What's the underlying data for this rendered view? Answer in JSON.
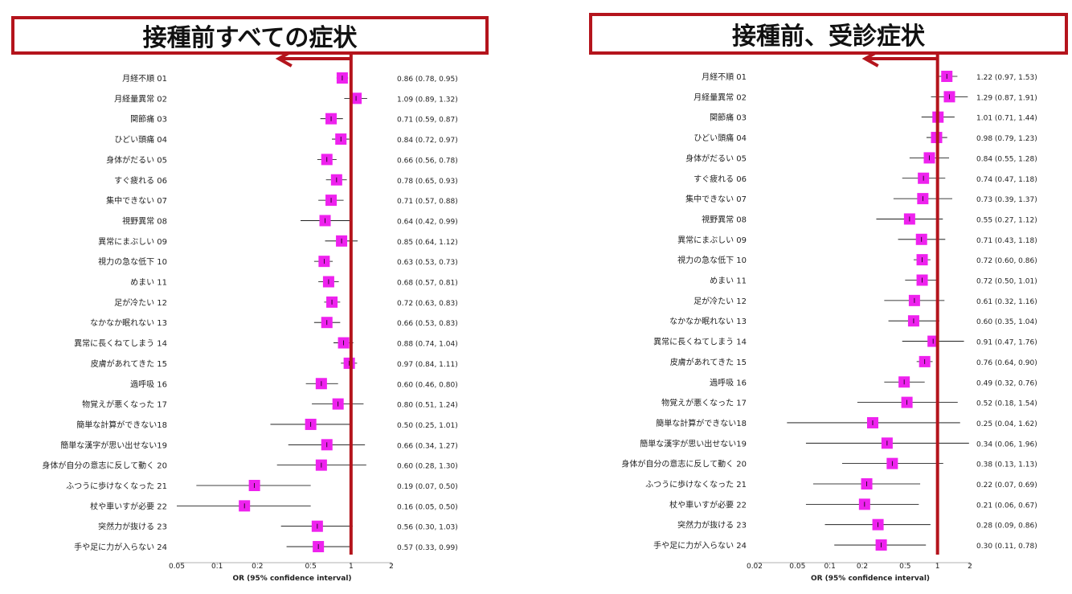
{
  "colors": {
    "accent": "#b4141c",
    "marker": "#ee22ee",
    "ci_line": "#000000"
  },
  "xlabel": "OR (95% confidence interval)",
  "panels": [
    {
      "title": "接種前すべての症状",
      "chart_data": {
        "type": "forest",
        "title": "接種前すべての症状",
        "xlabel": "OR (95% confidence interval)",
        "xscale": "log",
        "xticks": [
          "0.05",
          "0.1",
          "0.2",
          "0.5",
          "1",
          "2"
        ],
        "xlim": [
          0.05,
          2
        ],
        "reference_line": 1,
        "arrow": "left",
        "rows": [
          {
            "label": "月経不順 01",
            "or": 0.86,
            "lo": 0.78,
            "hi": 0.95,
            "text": "0.86 (0.78, 0.95)"
          },
          {
            "label": "月経量異常 02",
            "or": 1.09,
            "lo": 0.89,
            "hi": 1.32,
            "text": "1.09 (0.89, 1.32)"
          },
          {
            "label": "関節痛 03",
            "or": 0.71,
            "lo": 0.59,
            "hi": 0.87,
            "text": "0.71 (0.59, 0.87)"
          },
          {
            "label": "ひどい頭痛 04",
            "or": 0.84,
            "lo": 0.72,
            "hi": 0.97,
            "text": "0.84 (0.72, 0.97)"
          },
          {
            "label": "身体がだるい 05",
            "or": 0.66,
            "lo": 0.56,
            "hi": 0.78,
            "text": "0.66 (0.56, 0.78)"
          },
          {
            "label": "すぐ疲れる 06",
            "or": 0.78,
            "lo": 0.65,
            "hi": 0.93,
            "text": "0.78 (0.65, 0.93)"
          },
          {
            "label": "集中できない 07",
            "or": 0.71,
            "lo": 0.57,
            "hi": 0.88,
            "text": "0.71 (0.57, 0.88)"
          },
          {
            "label": "視野異常 08",
            "or": 0.64,
            "lo": 0.42,
            "hi": 0.99,
            "text": "0.64 (0.42, 0.99)"
          },
          {
            "label": "異常にまぶしい 09",
            "or": 0.85,
            "lo": 0.64,
            "hi": 1.12,
            "text": "0.85 (0.64, 1.12)"
          },
          {
            "label": "視力の急な低下 10",
            "or": 0.63,
            "lo": 0.53,
            "hi": 0.73,
            "text": "0.63 (0.53, 0.73)"
          },
          {
            "label": "めまい 11",
            "or": 0.68,
            "lo": 0.57,
            "hi": 0.81,
            "text": "0.68 (0.57, 0.81)"
          },
          {
            "label": "足が冷たい 12",
            "or": 0.72,
            "lo": 0.63,
            "hi": 0.83,
            "text": "0.72 (0.63, 0.83)"
          },
          {
            "label": "なかなか眠れない 13",
            "or": 0.66,
            "lo": 0.53,
            "hi": 0.83,
            "text": "0.66 (0.53, 0.83)"
          },
          {
            "label": "異常に長くねてしまう 14",
            "or": 0.88,
            "lo": 0.74,
            "hi": 1.04,
            "text": "0.88 (0.74, 1.04)"
          },
          {
            "label": "皮膚があれてきた 15",
            "or": 0.97,
            "lo": 0.84,
            "hi": 1.11,
            "text": "0.97 (0.84, 1.11)"
          },
          {
            "label": "過呼吸 16",
            "or": 0.6,
            "lo": 0.46,
            "hi": 0.8,
            "text": "0.60 (0.46, 0.80)"
          },
          {
            "label": "物覚えが悪くなった 17",
            "or": 0.8,
            "lo": 0.51,
            "hi": 1.24,
            "text": "0.80 (0.51, 1.24)"
          },
          {
            "label": "簡単な計算ができない18",
            "or": 0.5,
            "lo": 0.25,
            "hi": 1.01,
            "text": "0.50 (0.25, 1.01)"
          },
          {
            "label": "簡単な漢字が思い出せない19",
            "or": 0.66,
            "lo": 0.34,
            "hi": 1.27,
            "text": "0.66 (0.34, 1.27)"
          },
          {
            "label": "身体が自分の意志に反して動く 20",
            "or": 0.6,
            "lo": 0.28,
            "hi": 1.3,
            "text": "0.60 (0.28, 1.30)"
          },
          {
            "label": "ふつうに歩けなくなった 21",
            "or": 0.19,
            "lo": 0.07,
            "hi": 0.5,
            "text": "0.19 (0.07, 0.50)"
          },
          {
            "label": "杖や車いすが必要 22",
            "or": 0.16,
            "lo": 0.05,
            "hi": 0.5,
            "text": "0.16 (0.05, 0.50)"
          },
          {
            "label": "突然力が抜ける 23",
            "or": 0.56,
            "lo": 0.3,
            "hi": 1.03,
            "text": "0.56 (0.30, 1.03)"
          },
          {
            "label": "手や足に力が入らない 24",
            "or": 0.57,
            "lo": 0.33,
            "hi": 0.99,
            "text": "0.57 (0.33, 0.99)"
          }
        ]
      }
    },
    {
      "title": "接種前、受診症状",
      "chart_data": {
        "type": "forest",
        "title": "接種前、受診症状",
        "xlabel": "OR (95% confidence interval)",
        "xscale": "log",
        "xticks": [
          "0.02",
          "0.05",
          "0.1",
          "0.2",
          "0.5",
          "1",
          "2"
        ],
        "xlim": [
          0.02,
          2
        ],
        "reference_line": 1,
        "arrow": "left",
        "rows": [
          {
            "label": "月経不順 01",
            "or": 1.22,
            "lo": 0.97,
            "hi": 1.53,
            "text": "1.22 (0.97, 1.53)"
          },
          {
            "label": "月経量異常 02",
            "or": 1.29,
            "lo": 0.87,
            "hi": 1.91,
            "text": "1.29 (0.87, 1.91)"
          },
          {
            "label": "関節痛 03",
            "or": 1.01,
            "lo": 0.71,
            "hi": 1.44,
            "text": "1.01 (0.71, 1.44)"
          },
          {
            "label": "ひどい頭痛 04",
            "or": 0.98,
            "lo": 0.79,
            "hi": 1.23,
            "text": "0.98 (0.79, 1.23)"
          },
          {
            "label": "身体がだるい 05",
            "or": 0.84,
            "lo": 0.55,
            "hi": 1.28,
            "text": "0.84 (0.55, 1.28)"
          },
          {
            "label": "すぐ疲れる 06",
            "or": 0.74,
            "lo": 0.47,
            "hi": 1.18,
            "text": "0.74 (0.47, 1.18)"
          },
          {
            "label": "集中できない 07",
            "or": 0.73,
            "lo": 0.39,
            "hi": 1.37,
            "text": "0.73 (0.39, 1.37)"
          },
          {
            "label": "視野異常 08",
            "or": 0.55,
            "lo": 0.27,
            "hi": 1.12,
            "text": "0.55 (0.27, 1.12)"
          },
          {
            "label": "異常にまぶしい 09",
            "or": 0.71,
            "lo": 0.43,
            "hi": 1.18,
            "text": "0.71 (0.43, 1.18)"
          },
          {
            "label": "視力の急な低下 10",
            "or": 0.72,
            "lo": 0.6,
            "hi": 0.86,
            "text": "0.72 (0.60, 0.86)"
          },
          {
            "label": "めまい 11",
            "or": 0.72,
            "lo": 0.5,
            "hi": 1.01,
            "text": "0.72 (0.50, 1.01)"
          },
          {
            "label": "足が冷たい 12",
            "or": 0.61,
            "lo": 0.32,
            "hi": 1.16,
            "text": "0.61 (0.32, 1.16)"
          },
          {
            "label": "なかなか眠れない 13",
            "or": 0.6,
            "lo": 0.35,
            "hi": 1.04,
            "text": "0.60 (0.35, 1.04)"
          },
          {
            "label": "異常に長くねてしまう 14",
            "or": 0.91,
            "lo": 0.47,
            "hi": 1.76,
            "text": "0.91 (0.47, 1.76)"
          },
          {
            "label": "皮膚があれてきた 15",
            "or": 0.76,
            "lo": 0.64,
            "hi": 0.9,
            "text": "0.76 (0.64, 0.90)"
          },
          {
            "label": "過呼吸 16",
            "or": 0.49,
            "lo": 0.32,
            "hi": 0.76,
            "text": "0.49 (0.32, 0.76)"
          },
          {
            "label": "物覚えが悪くなった 17",
            "or": 0.52,
            "lo": 0.18,
            "hi": 1.54,
            "text": "0.52 (0.18, 1.54)"
          },
          {
            "label": "簡単な計算ができない18",
            "or": 0.25,
            "lo": 0.04,
            "hi": 1.62,
            "text": "0.25 (0.04, 1.62)"
          },
          {
            "label": "簡単な漢字が思い出せない19",
            "or": 0.34,
            "lo": 0.06,
            "hi": 1.96,
            "text": "0.34 (0.06, 1.96)"
          },
          {
            "label": "身体が自分の意志に反して動く 20",
            "or": 0.38,
            "lo": 0.13,
            "hi": 1.13,
            "text": "0.38 (0.13, 1.13)"
          },
          {
            "label": "ふつうに歩けなくなった 21",
            "or": 0.22,
            "lo": 0.07,
            "hi": 0.69,
            "text": "0.22 (0.07, 0.69)"
          },
          {
            "label": "杖や車いすが必要 22",
            "or": 0.21,
            "lo": 0.06,
            "hi": 0.67,
            "text": "0.21 (0.06, 0.67)"
          },
          {
            "label": "突然力が抜ける 23",
            "or": 0.28,
            "lo": 0.09,
            "hi": 0.86,
            "text": "0.28 (0.09, 0.86)"
          },
          {
            "label": "手や足に力が入らない 24",
            "or": 0.3,
            "lo": 0.11,
            "hi": 0.78,
            "text": "0.30 (0.11, 0.78)"
          }
        ]
      }
    }
  ]
}
